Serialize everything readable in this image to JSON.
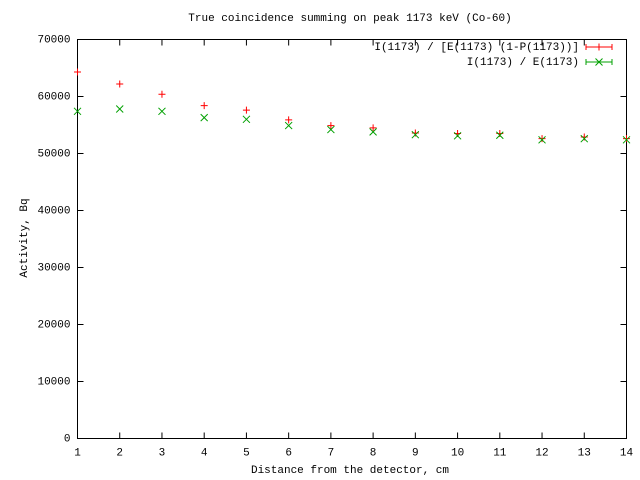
{
  "chart_data": {
    "type": "scatter",
    "title": "True coincidence summing on peak 1173 keV (Co-60)",
    "x_label": "Distance from the detector, cm",
    "y_label": "Activity, Bq",
    "x": [
      1,
      2,
      3,
      4,
      5,
      6,
      7,
      8,
      9,
      10,
      11,
      12,
      13,
      14
    ],
    "series": [
      {
        "name": "I(1173) / [E(1173) (1-P(1173))]",
        "color": "#ff0000",
        "marker": "plus",
        "values": [
          64300,
          62200,
          60400,
          58400,
          57600,
          55900,
          54900,
          54500,
          53600,
          53500,
          53500,
          52600,
          52900,
          52600
        ]
      },
      {
        "name": "I(1173) / E(1173)",
        "color": "#00a000",
        "marker": "cross",
        "values": [
          57400,
          57800,
          57400,
          56300,
          56000,
          54900,
          54200,
          53800,
          53300,
          53100,
          53200,
          52400,
          52600,
          52400
        ]
      }
    ],
    "xlim": [
      1,
      14
    ],
    "xticks": [
      1,
      2,
      3,
      4,
      5,
      6,
      7,
      8,
      9,
      10,
      11,
      12,
      13,
      14
    ],
    "ylim": [
      0,
      70000
    ],
    "yticks": [
      0,
      10000,
      20000,
      30000,
      40000,
      50000,
      60000,
      70000
    ],
    "grid": false,
    "legend": "top-right"
  }
}
